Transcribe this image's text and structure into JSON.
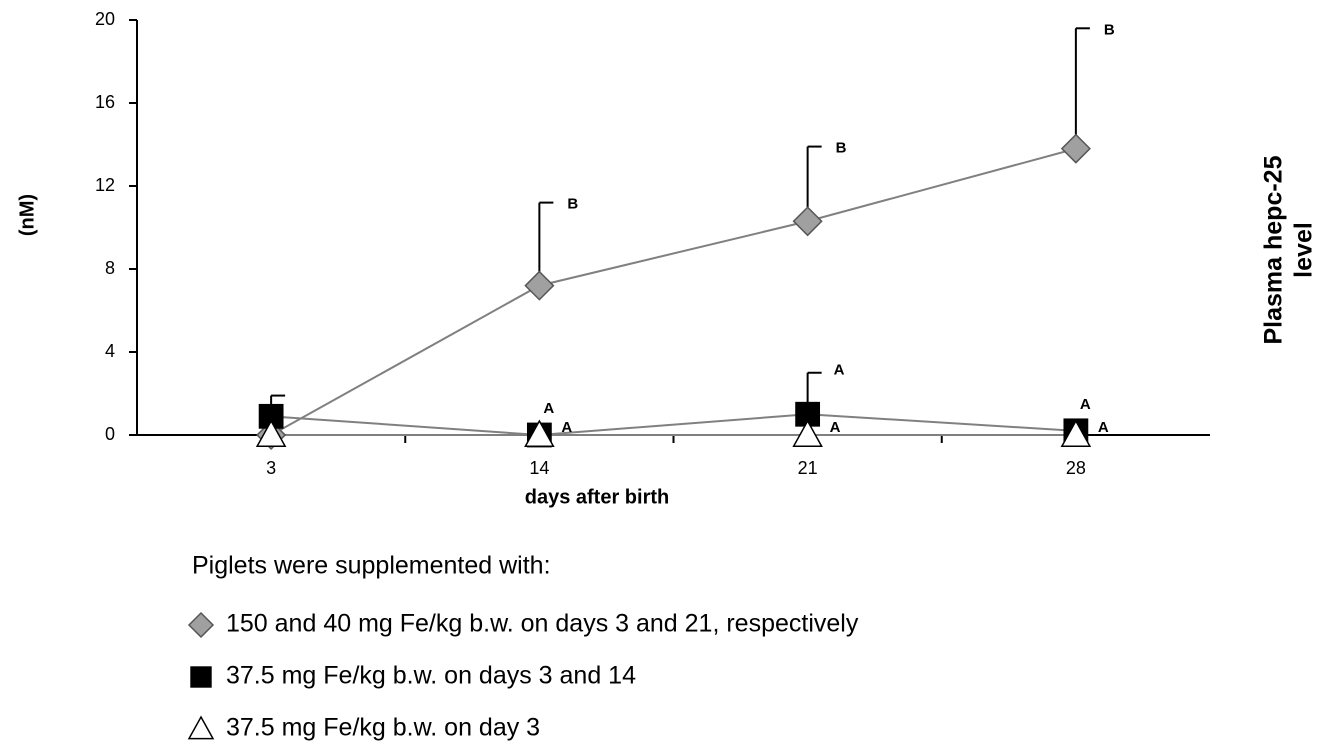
{
  "chart_data": {
    "type": "line",
    "ylabel": [
      "Plasma hepc-25",
      "level"
    ],
    "yunit": "(nM)",
    "xlabel": "days after birth",
    "categories": [
      "3",
      "14",
      "21",
      "28"
    ],
    "ylim": [
      0,
      20
    ],
    "yticks": [
      0,
      4,
      8,
      12,
      16,
      20
    ],
    "legend_title": "Piglets were supplemented with:",
    "series": [
      {
        "name": "150 and 40 mg Fe/kg b.w. on days 3 and 21, respectively",
        "color": "#a0a0a0",
        "marker": "diamond",
        "values": [
          0,
          7.2,
          10.3,
          13.8
        ],
        "errors": [
          null,
          4.0,
          3.6,
          5.8
        ],
        "letters": [
          null,
          "B",
          "B",
          "B"
        ]
      },
      {
        "name": "37.5 mg Fe/kg b.w. on days 3 and 14",
        "color": "#000000",
        "marker": "square",
        "values": [
          0.9,
          0,
          1.0,
          0.2
        ],
        "errors": [
          1.0,
          null,
          2.0,
          null
        ],
        "letters": [
          null,
          "A",
          "A",
          "A"
        ]
      },
      {
        "name": "37.5 mg Fe/kg b.w. on day 3",
        "color": "#ffffff",
        "marker": "triangle",
        "values": [
          0,
          0,
          0,
          0
        ],
        "errors": [
          null,
          null,
          null,
          null
        ],
        "letters": [
          null,
          "A",
          "A",
          "A"
        ]
      }
    ]
  }
}
